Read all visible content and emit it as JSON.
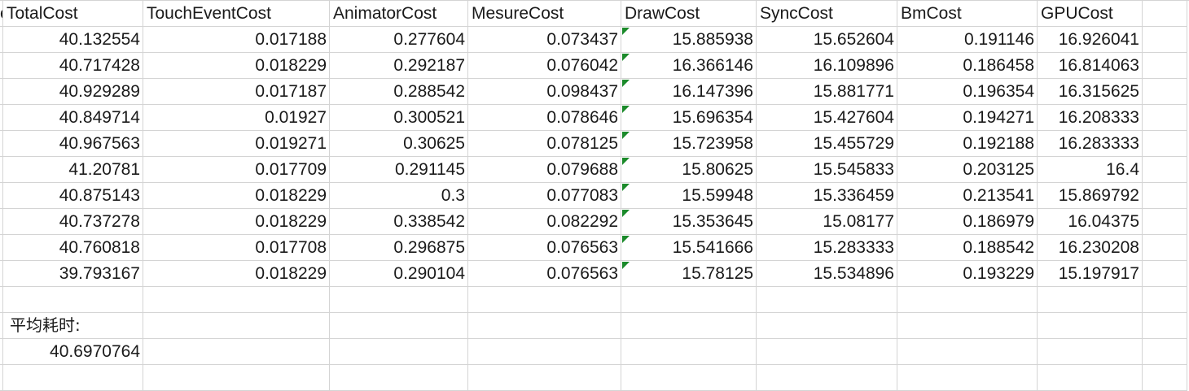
{
  "sheet": {
    "headers": [
      "TotalCost",
      "TouchEventCost",
      "AnimatorCost",
      "MesureCost",
      "DrawCost",
      "SyncCost",
      "BmCost",
      "GPUCost"
    ],
    "rows": [
      [
        "40.132554",
        "0.017188",
        "0.277604",
        "0.073437",
        "15.885938",
        "15.652604",
        "0.191146",
        "16.926041"
      ],
      [
        "40.717428",
        "0.018229",
        "0.292187",
        "0.076042",
        "16.366146",
        "16.109896",
        "0.186458",
        "16.814063"
      ],
      [
        "40.929289",
        "0.017187",
        "0.288542",
        "0.098437",
        "16.147396",
        "15.881771",
        "0.196354",
        "16.315625"
      ],
      [
        "40.849714",
        "0.01927",
        "0.300521",
        "0.078646",
        "15.696354",
        "15.427604",
        "0.194271",
        "16.208333"
      ],
      [
        "40.967563",
        "0.019271",
        "0.30625",
        "0.078125",
        "15.723958",
        "15.455729",
        "0.192188",
        "16.283333"
      ],
      [
        "41.20781",
        "0.017709",
        "0.291145",
        "0.079688",
        "15.80625",
        "15.545833",
        "0.203125",
        "16.4"
      ],
      [
        "40.875143",
        "0.018229",
        "0.3",
        "0.077083",
        "15.59948",
        "15.336459",
        "0.213541",
        "15.869792"
      ],
      [
        "40.737278",
        "0.018229",
        "0.338542",
        "0.082292",
        "15.353645",
        "15.08177",
        "0.186979",
        "16.04375"
      ],
      [
        "40.760818",
        "0.017708",
        "0.296875",
        "0.076563",
        "15.541666",
        "15.283333",
        "0.188542",
        "16.230208"
      ],
      [
        "39.793167",
        "0.018229",
        "0.290104",
        "0.076563",
        "15.78125",
        "15.534896",
        "0.193229",
        "15.197917"
      ]
    ],
    "summary_label": "平均耗时:",
    "summary_value": "40.6970764",
    "edge_header_fragment": "e",
    "indicator_color": "#1b8a2a"
  }
}
